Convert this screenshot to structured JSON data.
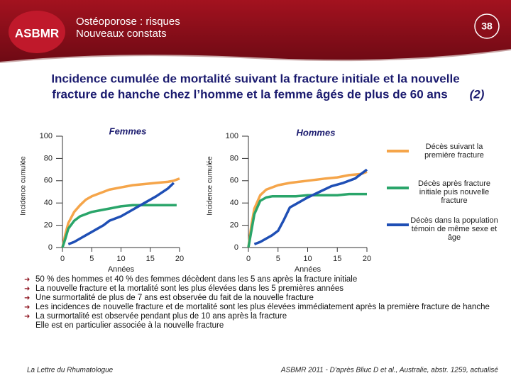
{
  "header": {
    "logo": "ASBMR",
    "title": [
      "Ostéoporose : risques",
      "Nouveaux constats"
    ],
    "page_number": "38"
  },
  "slide_title": {
    "text": [
      "Incidence cumulée de mortalité suivant la fracture initiale et la nouvelle",
      "fracture de hanche chez l’homme et la femme âgés de plus de 60 ans"
    ],
    "reference": "(2)"
  },
  "chart_data": [
    {
      "type": "line",
      "title": "Femmes",
      "xlabel": "Années",
      "ylabel": "Incidence cumulée",
      "xlim": [
        0,
        20
      ],
      "xticks": [
        0,
        5,
        10,
        15,
        20
      ],
      "ylim": [
        0,
        100
      ],
      "yticks": [
        0,
        20,
        40,
        60,
        80,
        100
      ],
      "series": [
        {
          "name": "Décès suivant la première fracture",
          "color": "#f5a54a",
          "x": [
            0,
            0.5,
            1,
            2,
            3,
            4,
            5,
            6,
            7,
            8,
            10,
            12,
            14,
            16,
            18,
            19,
            20
          ],
          "values": [
            0,
            12,
            22,
            32,
            38,
            43,
            46,
            48,
            50,
            52,
            54,
            56,
            57,
            58,
            59,
            60,
            62
          ]
        },
        {
          "name": "Décès après fracture initiale puis nouvelle fracture",
          "color": "#2aa56a",
          "x": [
            0,
            0.5,
            1,
            2,
            3,
            5,
            7,
            8,
            10,
            12,
            15,
            19.5
          ],
          "values": [
            0,
            8,
            17,
            24,
            28,
            32,
            34,
            35,
            37,
            38,
            38,
            38
          ]
        },
        {
          "name": "Décès dans la population témoin de même sexe et âge",
          "color": "#1f4fb5",
          "x": [
            1,
            2,
            3,
            4,
            5,
            6,
            7,
            8,
            10,
            12,
            14,
            16,
            18,
            19
          ],
          "values": [
            3,
            5,
            8,
            11,
            14,
            17,
            20,
            24,
            28,
            34,
            40,
            46,
            53,
            58
          ]
        }
      ]
    },
    {
      "type": "line",
      "title": "Hommes",
      "xlabel": "Années",
      "ylabel": "Incidence cumulée",
      "xlim": [
        0,
        20
      ],
      "xticks": [
        0,
        5,
        10,
        15,
        20
      ],
      "ylim": [
        0,
        100
      ],
      "yticks": [
        0,
        20,
        40,
        60,
        80,
        100
      ],
      "series": [
        {
          "color": "#f5a54a",
          "x": [
            0,
            0.5,
            1,
            2,
            3,
            4,
            5,
            7,
            10,
            13,
            15,
            17,
            19,
            20
          ],
          "values": [
            0,
            20,
            35,
            47,
            52,
            54,
            56,
            58,
            60,
            62,
            63,
            65,
            66,
            68
          ]
        },
        {
          "color": "#2aa56a",
          "x": [
            0,
            0.5,
            1,
            2,
            3,
            4,
            5,
            8,
            10,
            13,
            15,
            17,
            20
          ],
          "values": [
            0,
            15,
            30,
            42,
            45,
            46,
            46,
            46,
            47,
            47,
            47,
            48,
            48
          ]
        },
        {
          "color": "#1f4fb5",
          "x": [
            1,
            2,
            3,
            4,
            5,
            6,
            7,
            8,
            10,
            12,
            14,
            16,
            18,
            19,
            20
          ],
          "values": [
            3,
            5,
            8,
            11,
            15,
            25,
            36,
            39,
            45,
            50,
            55,
            58,
            62,
            66,
            70
          ]
        }
      ]
    }
  ],
  "bullets": [
    [
      "50 % des hommes et 40 % des femmes décèdent dans les 5 ans après la fracture initiale"
    ],
    [
      "La nouvelle fracture et la mortalité sont les plus élevées dans les 5 premières années"
    ],
    [
      "Une surmortalité de plus de 7 ans est observée du fait de la nouvelle fracture"
    ],
    [
      "Les incidences de nouvelle fracture et de mortalité sont les plus élevées immédiatement après la première fracture de hanche"
    ],
    [
      "La surmortalité est observée pendant plus de 10 ans après la fracture",
      "Elle est en particulier associée à la nouvelle fracture"
    ]
  ],
  "footer": {
    "left": "La Lettre du Rhumatologue",
    "right": "ASBMR 2011 - D'après Bliuc D et al., Australie, abstr. 1259, actualisé"
  }
}
